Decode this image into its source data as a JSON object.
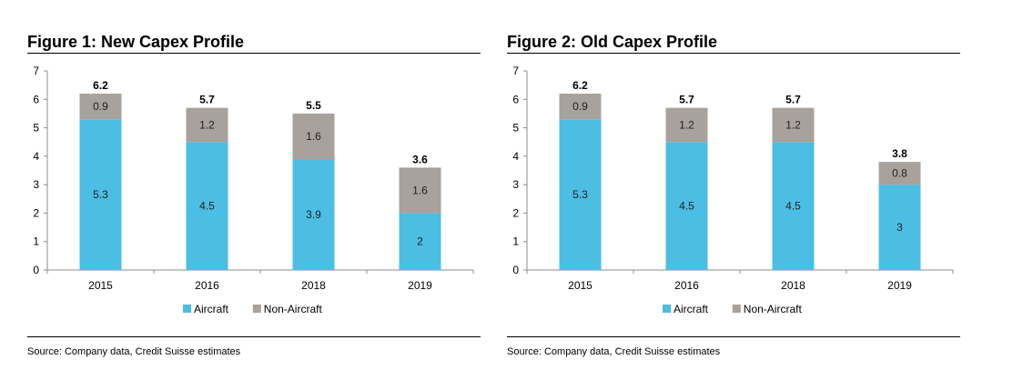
{
  "chart_data": [
    {
      "type": "bar",
      "stacked": true,
      "title": "Figure 1: New Capex Profile",
      "categories": [
        "2015",
        "2016",
        "2018",
        "2019"
      ],
      "series": [
        {
          "name": "Aircraft",
          "values": [
            5.3,
            4.5,
            3.9,
            2
          ],
          "labels": [
            "5.3",
            "4.5",
            "3.9",
            "2"
          ],
          "color": "#4cbde3"
        },
        {
          "name": "Non-Aircraft",
          "values": [
            0.9,
            1.2,
            1.6,
            1.6
          ],
          "labels": [
            "0.9",
            "1.2",
            "1.6",
            "1.6"
          ],
          "color": "#a9a19b"
        }
      ],
      "totals": [
        "6.2",
        "5.7",
        "5.5",
        "3.6"
      ],
      "yticks": [
        "0",
        "1",
        "2",
        "3",
        "4",
        "5",
        "6",
        "7"
      ],
      "ylim": [
        0,
        7
      ],
      "legend": "bottom-center",
      "source": "Source: Company data, Credit Suisse estimates"
    },
    {
      "type": "bar",
      "stacked": true,
      "title": "Figure 2: Old Capex Profile",
      "categories": [
        "2015",
        "2016",
        "2018",
        "2019"
      ],
      "series": [
        {
          "name": "Aircraft",
          "values": [
            5.3,
            4.5,
            4.5,
            3
          ],
          "labels": [
            "5.3",
            "4.5",
            "4.5",
            "3"
          ],
          "color": "#4cbde3"
        },
        {
          "name": "Non-Aircraft",
          "values": [
            0.9,
            1.2,
            1.2,
            0.8
          ],
          "labels": [
            "0.9",
            "1.2",
            "1.2",
            "0.8"
          ],
          "color": "#a9a19b"
        }
      ],
      "totals": [
        "6.2",
        "5.7",
        "5.7",
        "3.8"
      ],
      "yticks": [
        "0",
        "1",
        "2",
        "3",
        "4",
        "5",
        "6",
        "7"
      ],
      "ylim": [
        0,
        7
      ],
      "legend": "bottom-center",
      "source": "Source: Company data, Credit Suisse estimates"
    }
  ]
}
